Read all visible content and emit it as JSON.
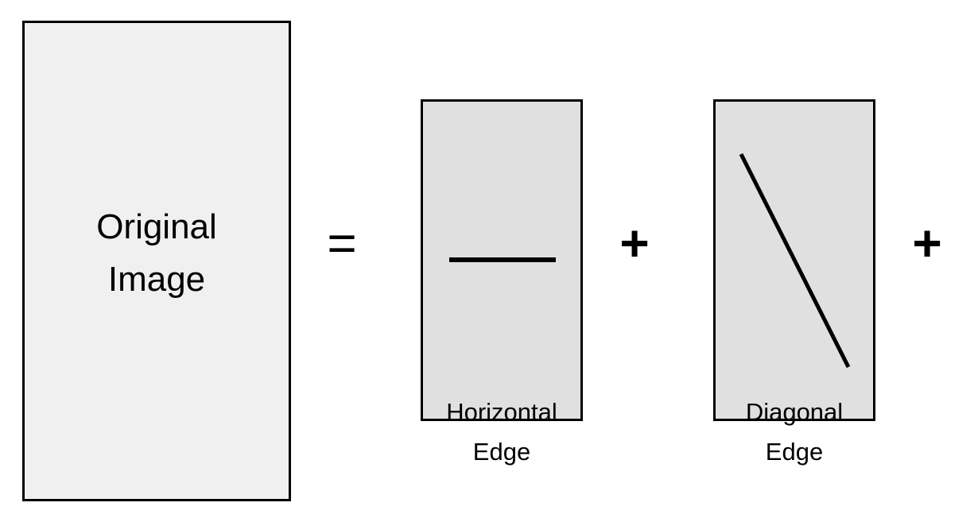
{
  "original": {
    "line1": "Original",
    "line2": "Image"
  },
  "operators": {
    "equals": "=",
    "plus": "+"
  },
  "components": [
    {
      "line1": "Horizontal",
      "line2": "Edge"
    },
    {
      "line1": "Diagonal",
      "line2": "Edge"
    }
  ],
  "colors": {
    "original_fill": "#f0f0f0",
    "component_fill": "#e0e0e0",
    "stroke": "#000000"
  }
}
